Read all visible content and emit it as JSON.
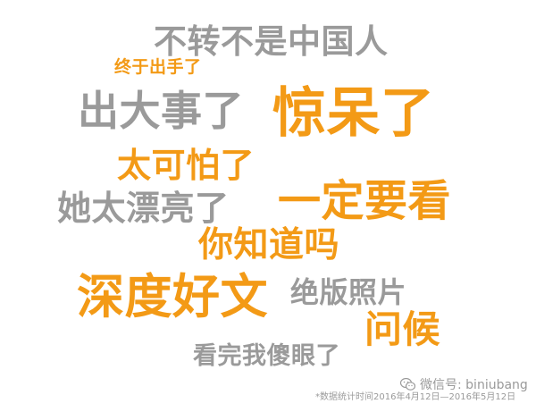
{
  "phrases": [
    {
      "text": "不转不是中国人",
      "color": "gray"
    },
    {
      "text": "终于出手了",
      "color": "orange"
    },
    {
      "text": "出大事了",
      "color": "gray"
    },
    {
      "text": "惊呆了",
      "color": "orange"
    },
    {
      "text": "太可怕了",
      "color": "orange"
    },
    {
      "text": "她太漂亮了",
      "color": "gray"
    },
    {
      "text": "一定要看",
      "color": "orange"
    },
    {
      "text": "你知道吗",
      "color": "orange"
    },
    {
      "text": "深度好文",
      "color": "orange"
    },
    {
      "text": "绝版照片",
      "color": "gray"
    },
    {
      "text": "问候",
      "color": "orange"
    },
    {
      "text": "看完我傻眼了",
      "color": "gray"
    }
  ],
  "footnote": "*数据统计时间2016年4月12日—2016年5月12日",
  "watermark": {
    "icon": "wechat-icon",
    "text": "微信号: biniubang"
  },
  "colors": {
    "orange": "#f39a16",
    "gray": "#9a9a9a"
  }
}
